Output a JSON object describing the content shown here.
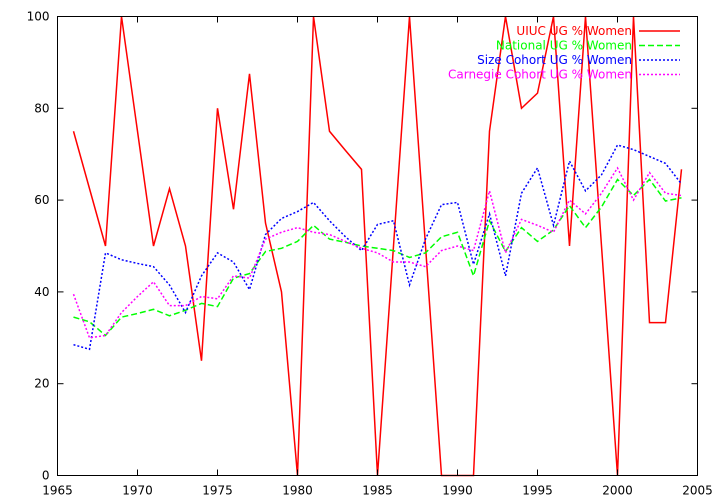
{
  "chart_data": {
    "type": "line",
    "title": "",
    "xlabel": "",
    "ylabel": "",
    "xlim": [
      1965,
      2005
    ],
    "ylim": [
      0,
      100
    ],
    "xticks": [
      1965,
      1970,
      1975,
      1980,
      1985,
      1990,
      1995,
      2000,
      2005
    ],
    "yticks": [
      0,
      20,
      40,
      60,
      80,
      100
    ],
    "grid": false,
    "legend_position": "top-right",
    "series": [
      {
        "name": "UIUC UG % Women",
        "color": "#ff0000",
        "dash": "solid",
        "x": [
          1966,
          1967,
          1968,
          1969,
          1970,
          1971,
          1972,
          1973,
          1974,
          1975,
          1976,
          1977,
          1978,
          1979,
          1980,
          1981,
          1982,
          1983,
          1984,
          1985,
          1986,
          1987,
          1988,
          1989,
          1990,
          1991,
          1992,
          1993,
          1994,
          1995,
          1996,
          1997,
          1998,
          1999,
          2000,
          2001,
          2002,
          2003,
          2004
        ],
        "y": [
          75,
          62.5,
          50,
          100,
          75,
          50,
          62.5,
          50,
          25,
          80,
          58,
          87.5,
          55,
          40,
          0,
          100,
          75,
          70.8,
          66.7,
          0,
          50,
          100,
          50,
          0,
          0,
          0,
          75,
          100,
          80,
          83.3,
          100,
          50,
          100,
          50,
          0,
          100,
          33.3,
          33.3,
          66.7
        ]
      },
      {
        "name": "National UG % Women",
        "color": "#00ff00",
        "dash": "dashed",
        "x": [
          1966,
          1967,
          1968,
          1969,
          1970,
          1971,
          1972,
          1973,
          1974,
          1975,
          1976,
          1977,
          1978,
          1979,
          1980,
          1981,
          1982,
          1983,
          1984,
          1985,
          1986,
          1987,
          1988,
          1989,
          1990,
          1991,
          1992,
          1993,
          1994,
          1995,
          1996,
          1997,
          1998,
          1999,
          2000,
          2001,
          2002,
          2003,
          2004
        ],
        "y": [
          34.5,
          33.5,
          30.5,
          34.5,
          35.3,
          36.2,
          34.8,
          36,
          37.5,
          36.8,
          43,
          44,
          48.8,
          49.5,
          51,
          54.5,
          51.5,
          50.8,
          50,
          49.5,
          49,
          47.5,
          48.5,
          52,
          53,
          43.5,
          55.5,
          48.8,
          54,
          51,
          53.5,
          58.8,
          54,
          58.5,
          64.5,
          61,
          64.5,
          59.8,
          60.5
        ]
      },
      {
        "name": "Size Cohort UG % Women",
        "color": "#0000ff",
        "dash": "dotted",
        "x": [
          1966,
          1967,
          1968,
          1969,
          1970,
          1971,
          1972,
          1973,
          1974,
          1975,
          1976,
          1977,
          1978,
          1979,
          1980,
          1981,
          1982,
          1983,
          1984,
          1985,
          1986,
          1987,
          1988,
          1989,
          1990,
          1991,
          1992,
          1993,
          1994,
          1995,
          1996,
          1997,
          1998,
          1999,
          2000,
          2001,
          2002,
          2003,
          2004
        ],
        "y": [
          28.5,
          27.5,
          48.5,
          47,
          46.2,
          45.5,
          41.5,
          35.5,
          43.5,
          48.5,
          46.5,
          40.5,
          52.5,
          56,
          57.5,
          59.5,
          55.5,
          52,
          49,
          54.7,
          55.5,
          41.5,
          51.5,
          59,
          59.5,
          46,
          57,
          43.5,
          61.5,
          67,
          54.5,
          68.5,
          62,
          65.5,
          72,
          71,
          69.5,
          68,
          63.5
        ]
      },
      {
        "name": "Carnegie Cohort UG % Women",
        "color": "#ff00ff",
        "dash": "dotted",
        "x": [
          1966,
          1967,
          1968,
          1969,
          1970,
          1971,
          1972,
          1973,
          1974,
          1975,
          1976,
          1977,
          1978,
          1979,
          1980,
          1981,
          1982,
          1983,
          1984,
          1985,
          1986,
          1987,
          1988,
          1989,
          1990,
          1991,
          1992,
          1993,
          1994,
          1995,
          1996,
          1997,
          1998,
          1999,
          2000,
          2001,
          2002,
          2003,
          2004
        ],
        "y": [
          39.5,
          30,
          30.5,
          35.5,
          39,
          42.2,
          37,
          37,
          39,
          38.5,
          43.5,
          43,
          51.5,
          53,
          54,
          53,
          52.5,
          51,
          49.5,
          48.5,
          46.5,
          46.5,
          45.5,
          49,
          50,
          49,
          62,
          48.5,
          55.8,
          54.5,
          53,
          60,
          57,
          61.5,
          67,
          60,
          66,
          61.5,
          61
        ]
      }
    ]
  }
}
